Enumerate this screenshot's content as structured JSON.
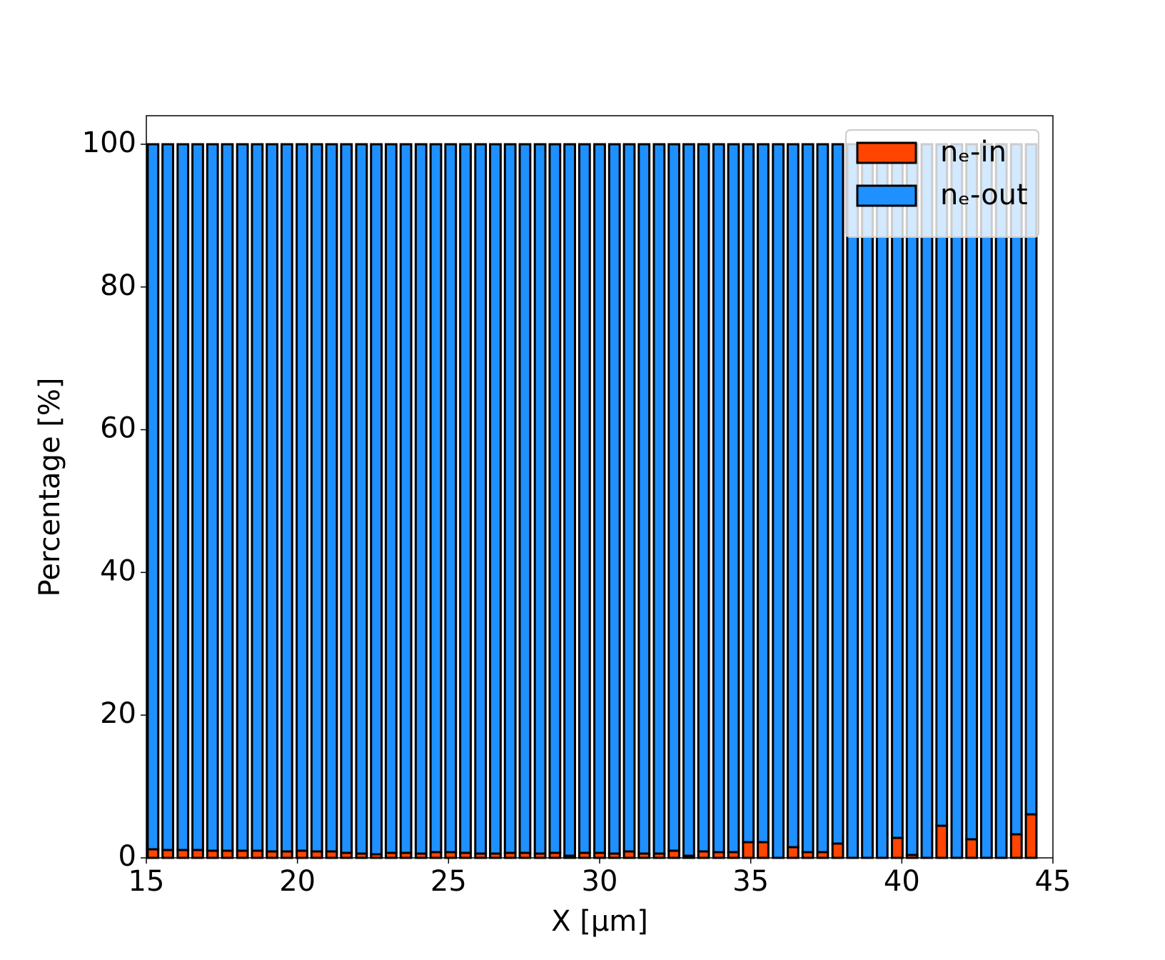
{
  "chart_data": {
    "type": "stacked-bar",
    "x_label": "X  [μm]",
    "y_label": "Percentage  [%]",
    "x": [
      15.22,
      15.71,
      16.21,
      16.7,
      17.19,
      17.68,
      18.18,
      18.67,
      19.16,
      19.65,
      20.15,
      20.64,
      21.13,
      21.62,
      22.12,
      22.61,
      23.1,
      23.59,
      24.09,
      24.58,
      25.07,
      25.56,
      26.06,
      26.55,
      27.04,
      27.53,
      28.03,
      28.52,
      29.01,
      29.5,
      30.0,
      30.49,
      30.98,
      31.47,
      31.97,
      32.46,
      32.95,
      33.44,
      33.94,
      34.43,
      34.92,
      35.41,
      35.91,
      36.4,
      36.89,
      37.38,
      37.88,
      38.37,
      38.86,
      39.35,
      39.85,
      40.34,
      40.83,
      41.32,
      41.82,
      42.31,
      42.8,
      43.29,
      43.79,
      44.28
    ],
    "series": [
      {
        "name": "nₑ-in",
        "color": "#ff4500",
        "values": [
          1.2,
          1.1,
          1.1,
          1.1,
          1.0,
          1.0,
          1.0,
          1.0,
          0.9,
          0.9,
          1.0,
          0.9,
          0.9,
          0.7,
          0.6,
          0.5,
          0.7,
          0.7,
          0.6,
          0.8,
          0.8,
          0.7,
          0.6,
          0.6,
          0.7,
          0.7,
          0.6,
          0.7,
          0.3,
          0.7,
          0.7,
          0.6,
          0.9,
          0.6,
          0.6,
          1.0,
          0.3,
          0.9,
          0.8,
          0.8,
          2.2,
          2.2,
          0,
          1.5,
          0.8,
          0.8,
          2.0,
          0,
          0,
          0,
          2.8,
          0.4,
          0,
          4.5,
          0,
          2.6,
          0,
          0,
          3.3,
          6.1
        ]
      },
      {
        "name": "nₑ-out",
        "color": "#1e90ff",
        "values": [
          98.8,
          98.9,
          98.9,
          98.9,
          99.0,
          99.0,
          99.0,
          99.0,
          99.1,
          99.1,
          99.0,
          99.1,
          99.1,
          99.3,
          99.4,
          99.5,
          99.3,
          99.3,
          99.4,
          99.2,
          99.2,
          99.3,
          99.4,
          99.4,
          99.3,
          99.3,
          99.4,
          99.3,
          99.7,
          99.3,
          99.3,
          99.4,
          99.1,
          99.4,
          99.4,
          99.0,
          99.7,
          99.1,
          99.2,
          99.2,
          97.8,
          97.8,
          100,
          98.5,
          99.2,
          99.2,
          98.0,
          100,
          100,
          100,
          97.2,
          99.6,
          100,
          95.5,
          100,
          97.4,
          100,
          100,
          96.7,
          93.9
        ]
      }
    ],
    "bar_width": 0.35,
    "xlim": [
      15,
      45
    ],
    "ylim": [
      0,
      104
    ],
    "xticks": [
      15,
      20,
      25,
      30,
      35,
      40,
      45
    ],
    "yticks": [
      0,
      20,
      40,
      60,
      80,
      100
    ],
    "legend": "upper right"
  }
}
